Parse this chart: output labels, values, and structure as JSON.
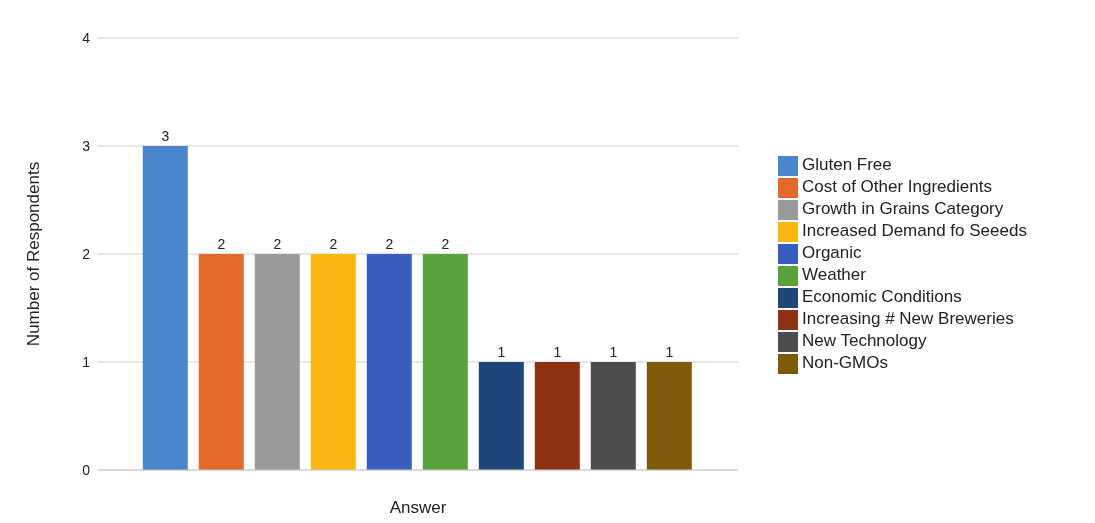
{
  "chart_data": {
    "type": "bar",
    "xlabel": "Answer",
    "ylabel": "Number of Respondents",
    "categories": [
      null
    ],
    "series": [
      {
        "name": "Gluten Free",
        "color": "#4a86cc",
        "values": [
          3
        ]
      },
      {
        "name": "Cost of Other Ingredients",
        "color": "#e36a2a",
        "values": [
          2
        ]
      },
      {
        "name": "Growth in Grains Category",
        "color": "#9a9a9a",
        "values": [
          2
        ]
      },
      {
        "name": "Increased Demand fo Seeeds",
        "color": "#fcb614",
        "values": [
          2
        ]
      },
      {
        "name": "Organic",
        "color": "#3a5cbc",
        "values": [
          2
        ]
      },
      {
        "name": "Weather",
        "color": "#5aa23c",
        "values": [
          2
        ]
      },
      {
        "name": "Economic Conditions",
        "color": "#1e4678",
        "values": [
          1
        ]
      },
      {
        "name": "Increasing # New Breweries",
        "color": "#8c3212",
        "values": [
          1
        ]
      },
      {
        "name": "New Technology",
        "color": "#4c4c4c",
        "values": [
          1
        ]
      },
      {
        "name": "Non-GMOs",
        "color": "#7e5a0a",
        "values": [
          1
        ]
      }
    ],
    "ylim": [
      0,
      4
    ],
    "yticks": [
      0,
      1,
      2,
      3,
      4
    ],
    "grid": "y",
    "legend": "right",
    "data_labels": true
  }
}
